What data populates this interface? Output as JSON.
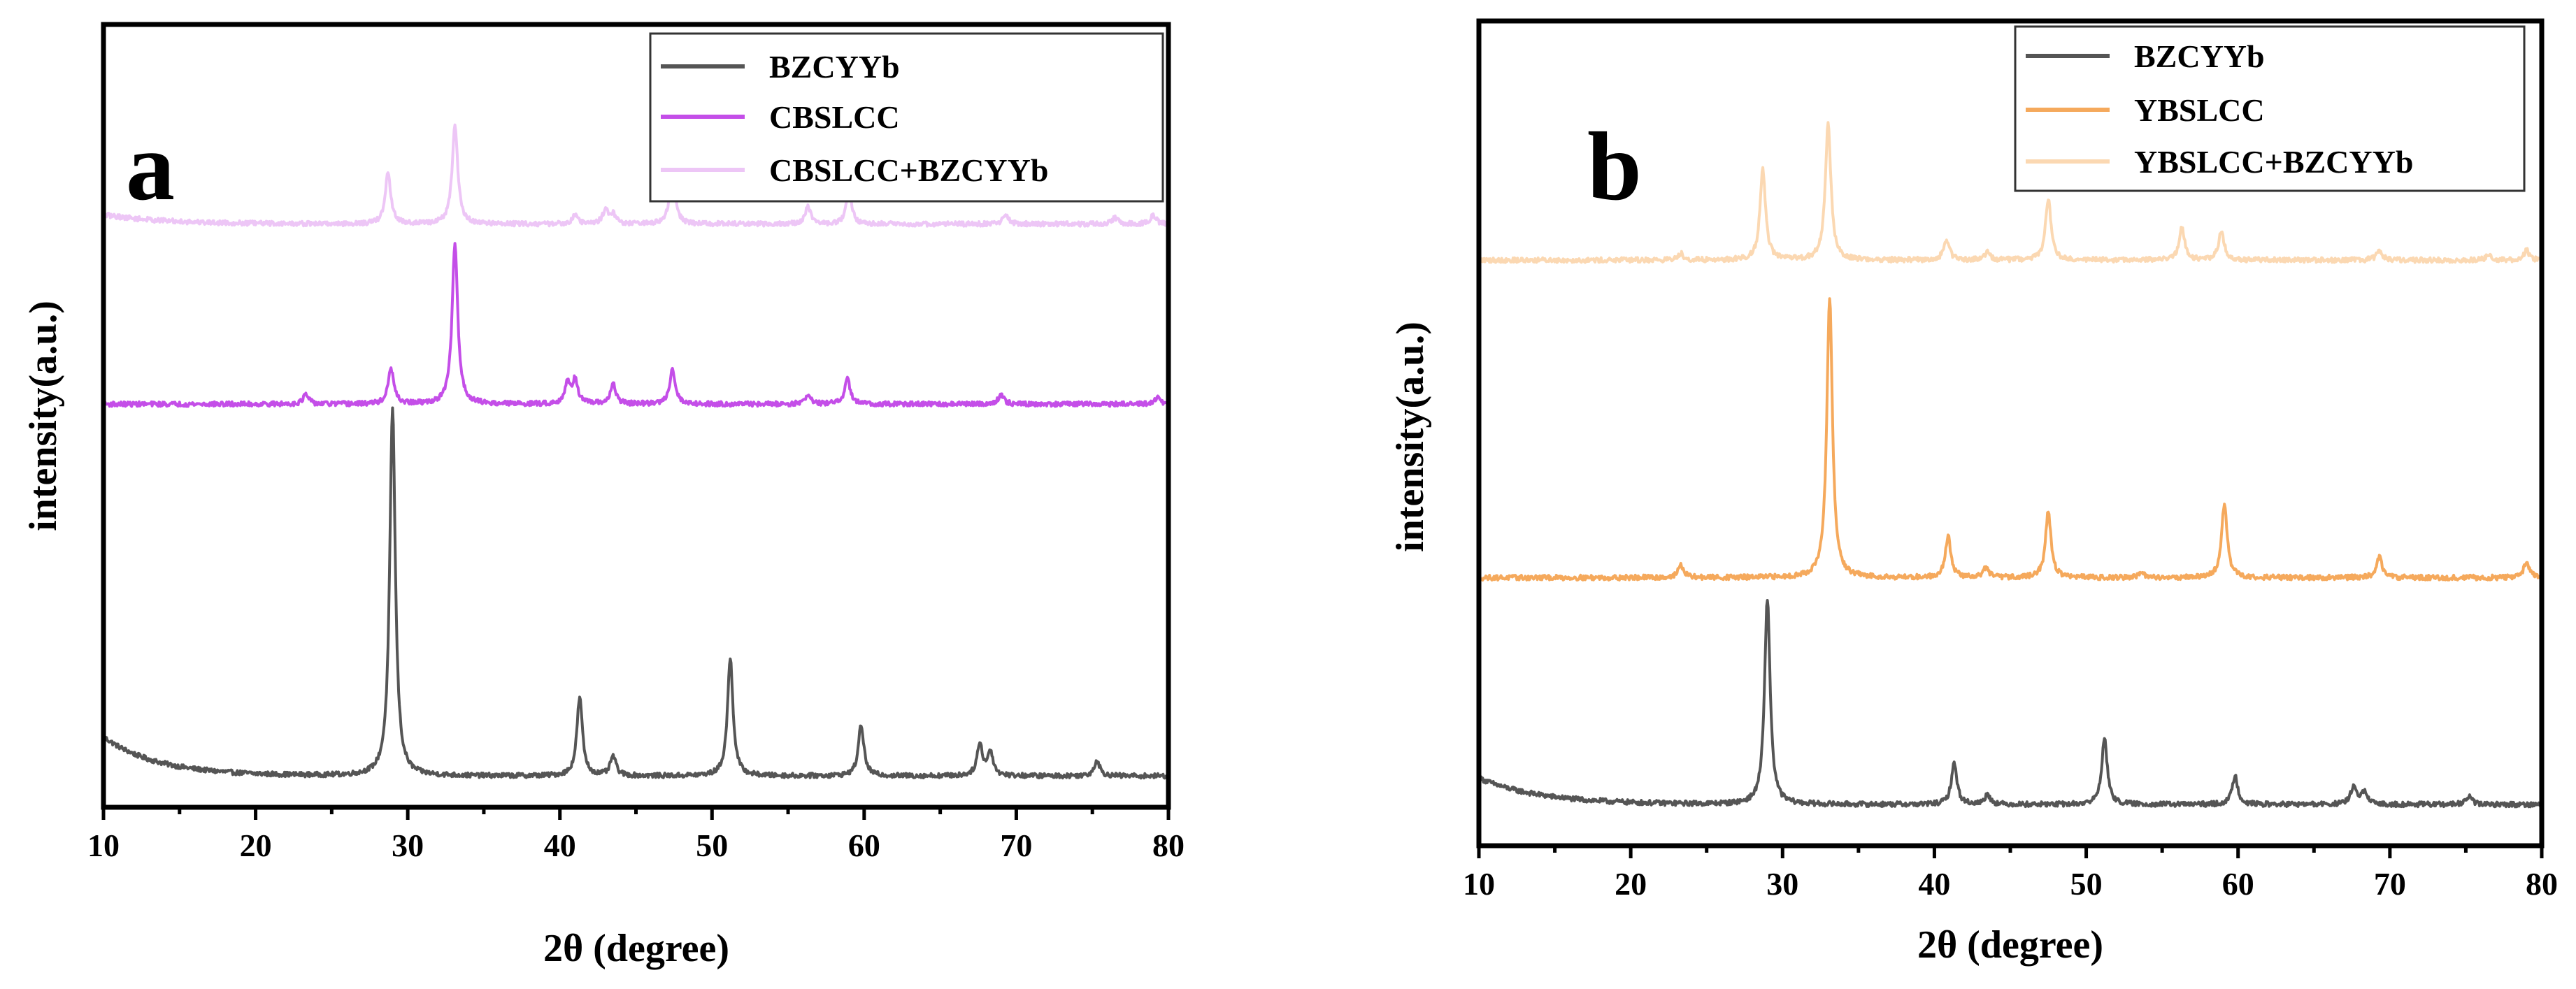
{
  "chart_data": [
    {
      "type": "line",
      "panel_label": "a",
      "xlabel": "2θ (degree)",
      "ylabel": "intensity(a.u.)",
      "xlim": [
        10,
        80
      ],
      "xticks": [
        10,
        20,
        30,
        40,
        50,
        60,
        70,
        80
      ],
      "ylim": [
        0,
        1
      ],
      "legend_position": "top-right",
      "series": [
        {
          "name": "BZCYYb",
          "color": "#555555",
          "offset": 0.04,
          "peaks": [
            [
              29.0,
              0.47
            ],
            [
              41.3,
              0.1
            ],
            [
              43.5,
              0.025
            ],
            [
              51.2,
              0.15
            ],
            [
              59.8,
              0.065
            ],
            [
              67.6,
              0.04
            ],
            [
              68.3,
              0.03
            ],
            [
              75.3,
              0.02
            ]
          ],
          "background": {
            "start": 0.05,
            "decay": 3.5
          }
        },
        {
          "name": "CBSLCC",
          "color": "#c44ee8",
          "offset": 0.515,
          "peaks": [
            [
              23.3,
              0.012
            ],
            [
              28.9,
              0.045
            ],
            [
              33.1,
              0.205
            ],
            [
              40.5,
              0.025
            ],
            [
              41.0,
              0.03
            ],
            [
              43.5,
              0.025
            ],
            [
              47.4,
              0.045
            ],
            [
              56.3,
              0.012
            ],
            [
              58.9,
              0.032
            ],
            [
              69.0,
              0.012
            ],
            [
              79.3,
              0.008
            ]
          ],
          "background": {
            "start": 0.0,
            "decay": 5
          }
        },
        {
          "name": "CBSLCC+BZCYYb",
          "color": "#edc6f6",
          "offset": 0.745,
          "peaks": [
            [
              28.7,
              0.065
            ],
            [
              33.1,
              0.125
            ],
            [
              41.0,
              0.012
            ],
            [
              43.0,
              0.018
            ],
            [
              43.5,
              0.012
            ],
            [
              47.4,
              0.065
            ],
            [
              56.3,
              0.022
            ],
            [
              59.0,
              0.04
            ],
            [
              69.3,
              0.012
            ],
            [
              76.5,
              0.008
            ],
            [
              79.0,
              0.012
            ]
          ],
          "background": {
            "start": 0.012,
            "decay": 4
          }
        }
      ]
    },
    {
      "type": "line",
      "panel_label": "b",
      "xlabel": "2θ (degree)",
      "ylabel": "intensity(a.u.)",
      "xlim": [
        10,
        80
      ],
      "xticks": [
        10,
        20,
        30,
        40,
        50,
        60,
        70,
        80
      ],
      "ylim": [
        0,
        1
      ],
      "legend_position": "top-right",
      "series": [
        {
          "name": "BZCYYb",
          "color": "#555555",
          "offset": 0.05,
          "peaks": [
            [
              29.0,
              0.25
            ],
            [
              41.3,
              0.05
            ],
            [
              43.5,
              0.012
            ],
            [
              51.2,
              0.08
            ],
            [
              59.8,
              0.035
            ],
            [
              67.6,
              0.022
            ],
            [
              68.3,
              0.015
            ],
            [
              75.2,
              0.01
            ]
          ],
          "background": {
            "start": 0.032,
            "decay": 4
          }
        },
        {
          "name": "YBSLCC",
          "color": "#f5a95c",
          "offset": 0.325,
          "peaks": [
            [
              23.3,
              0.015
            ],
            [
              33.1,
              0.34
            ],
            [
              40.9,
              0.05
            ],
            [
              43.4,
              0.012
            ],
            [
              47.5,
              0.08
            ],
            [
              53.6,
              0.006
            ],
            [
              59.1,
              0.09
            ],
            [
              69.3,
              0.025
            ],
            [
              79.0,
              0.02
            ]
          ],
          "background": {
            "start": 0.0,
            "decay": 5
          }
        },
        {
          "name": "YBSLCC+BZCYYb",
          "color": "#fbd8b2",
          "offset": 0.71,
          "peaks": [
            [
              23.3,
              0.008
            ],
            [
              28.7,
              0.11
            ],
            [
              33.0,
              0.165
            ],
            [
              40.8,
              0.025
            ],
            [
              43.5,
              0.01
            ],
            [
              47.5,
              0.075
            ],
            [
              56.3,
              0.04
            ],
            [
              58.9,
              0.035
            ],
            [
              69.3,
              0.012
            ],
            [
              76.5,
              0.006
            ],
            [
              79.0,
              0.012
            ]
          ],
          "background": {
            "start": 0.0,
            "decay": 4
          }
        }
      ]
    }
  ]
}
